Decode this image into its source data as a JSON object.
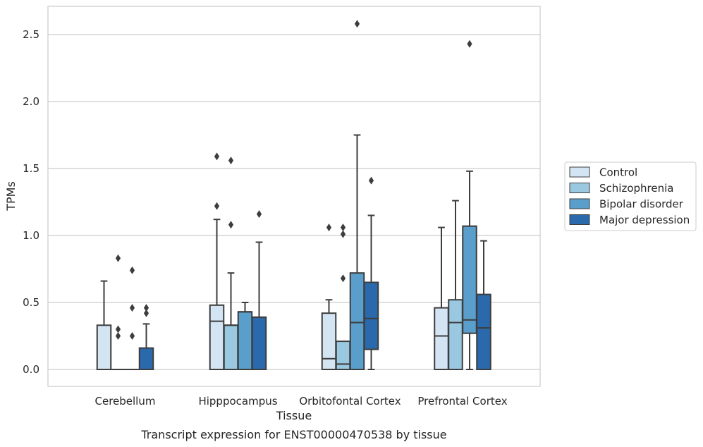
{
  "caption": "Transcript expression for ENST00000470538 by tissue",
  "chart_data": {
    "type": "box",
    "xlabel": "Tissue",
    "ylabel": "TPMs",
    "ylim": [
      -0.125,
      2.72
    ],
    "yticks": [
      0.0,
      0.5,
      1.0,
      1.5,
      2.0,
      2.5
    ],
    "ytick_labels": [
      "0.0",
      "0.5",
      "1.0",
      "1.5",
      "2.0",
      "2.5"
    ],
    "grid": "horizontal",
    "legend_position": "right",
    "categories": [
      "Cerebellum",
      "Hipppocampus",
      "Orbitofontal Cortex",
      "Prefrontal Cortex"
    ],
    "series": [
      {
        "name": "Control",
        "color": "#d3e4f3",
        "boxes": [
          {
            "q1": 0.0,
            "median": 0.0,
            "q3": 0.33,
            "whislo": 0.0,
            "whishi": 0.66,
            "fliers": []
          },
          {
            "q1": 0.0,
            "median": 0.36,
            "q3": 0.48,
            "whislo": 0.0,
            "whishi": 1.12,
            "fliers": [
              1.22,
              1.59
            ]
          },
          {
            "q1": 0.0,
            "median": 0.08,
            "q3": 0.42,
            "whislo": 0.0,
            "whishi": 0.52,
            "fliers": [
              1.06
            ]
          },
          {
            "q1": 0.0,
            "median": 0.25,
            "q3": 0.46,
            "whislo": 0.0,
            "whishi": 1.06,
            "fliers": []
          }
        ]
      },
      {
        "name": "Schizophrenia",
        "color": "#9ac8e0",
        "boxes": [
          {
            "q1": 0.0,
            "median": 0.0,
            "q3": 0.0,
            "whislo": 0.0,
            "whishi": 0.0,
            "fliers": [
              0.25,
              0.3,
              0.83
            ]
          },
          {
            "q1": 0.0,
            "median": 0.33,
            "q3": 0.33,
            "whislo": 0.0,
            "whishi": 0.72,
            "fliers": [
              1.08,
              1.56
            ]
          },
          {
            "q1": 0.0,
            "median": 0.04,
            "q3": 0.21,
            "whislo": 0.0,
            "whishi": 0.21,
            "fliers": [
              0.68,
              1.01,
              1.06
            ]
          },
          {
            "q1": 0.0,
            "median": 0.35,
            "q3": 0.52,
            "whislo": 0.0,
            "whishi": 1.26,
            "fliers": []
          }
        ]
      },
      {
        "name": "Bipolar disorder",
        "color": "#5a9fcb",
        "boxes": [
          {
            "q1": 0.0,
            "median": 0.0,
            "q3": 0.0,
            "whislo": 0.0,
            "whishi": 0.0,
            "fliers": [
              0.25,
              0.46,
              0.74
            ]
          },
          {
            "q1": 0.0,
            "median": 0.43,
            "q3": 0.43,
            "whislo": 0.0,
            "whishi": 0.5,
            "fliers": []
          },
          {
            "q1": 0.0,
            "median": 0.35,
            "q3": 0.72,
            "whislo": 0.0,
            "whishi": 1.75,
            "fliers": [
              2.58
            ]
          },
          {
            "q1": 0.27,
            "median": 0.37,
            "q3": 1.07,
            "whislo": 0.0,
            "whishi": 1.48,
            "fliers": [
              2.43
            ]
          }
        ]
      },
      {
        "name": "Major depression",
        "color": "#2a6aac",
        "boxes": [
          {
            "q1": 0.0,
            "median": 0.0,
            "q3": 0.16,
            "whislo": 0.0,
            "whishi": 0.34,
            "fliers": [
              0.42,
              0.46
            ]
          },
          {
            "q1": 0.0,
            "median": 0.39,
            "q3": 0.39,
            "whislo": 0.0,
            "whishi": 0.95,
            "fliers": [
              1.16
            ]
          },
          {
            "q1": 0.15,
            "median": 0.38,
            "q3": 0.65,
            "whislo": 0.0,
            "whishi": 1.15,
            "fliers": [
              1.41
            ]
          },
          {
            "q1": 0.0,
            "median": 0.31,
            "q3": 0.56,
            "whislo": 0.0,
            "whishi": 0.96,
            "fliers": []
          }
        ]
      }
    ]
  }
}
